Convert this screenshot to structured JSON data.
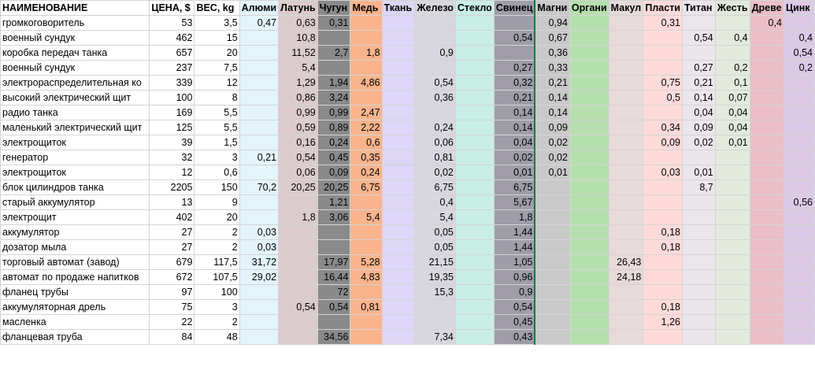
{
  "headers": [
    "НАИМЕНОВАНИЕ",
    "ЦЕНА, $",
    "ВЕС, kg",
    "Алюми",
    "Латунь",
    "Чугун",
    "Медь",
    "Ткань",
    "Железо",
    "Стекло",
    "Свинец",
    "Магни",
    "Органи",
    "Макул",
    "Пласти",
    "Титан",
    "Жесть",
    "Древе",
    "Цинк"
  ],
  "column_colors": [
    "#ffffff",
    "#ffffff",
    "#ffffff",
    "#e3f4fb",
    "#dccbcc",
    "#8a8a8a",
    "#f9b48d",
    "#ddd6f6",
    "#d8d6de",
    "#c8eee6",
    "#a09da9",
    "#c9c9c9",
    "#b6dfae",
    "#e7dada",
    "#fddada",
    "#ebe5ec",
    "#e3eadd",
    "#ebbec8",
    "#dcc9e8"
  ],
  "rows": [
    [
      "громкоговоритель",
      "53",
      "3,5",
      "0,47",
      "0,63",
      "0,31",
      "",
      "",
      "",
      "",
      "",
      "0,94",
      "",
      "",
      "0,31",
      "",
      "",
      "0,4",
      ""
    ],
    [
      "военный сундук",
      "462",
      "15",
      "",
      "10,8",
      "",
      "",
      "",
      "",
      "",
      "0,54",
      "0,67",
      "",
      "",
      "",
      "0,54",
      "0,4",
      "",
      "0,4"
    ],
    [
      "коробка передач танка",
      "657",
      "20",
      "",
      "11,52",
      "2,7",
      "1,8",
      "",
      "0,9",
      "",
      "",
      "0,36",
      "",
      "",
      "",
      "",
      "",
      "",
      "0,54"
    ],
    [
      "военный сундук",
      "237",
      "7,5",
      "",
      "5,4",
      "",
      "",
      "",
      "",
      "",
      "0,27",
      "0,33",
      "",
      "",
      "",
      "0,27",
      "0,2",
      "",
      "0,2"
    ],
    [
      "электрораспределительная ко",
      "339",
      "12",
      "",
      "1,29",
      "1,94",
      "4,86",
      "",
      "0,54",
      "",
      "0,32",
      "0,21",
      "",
      "",
      "0,75",
      "0,21",
      "0,1",
      "",
      ""
    ],
    [
      "высокий электрический щит",
      "100",
      "8",
      "",
      "0,86",
      "3,24",
      "",
      "",
      "0,36",
      "",
      "0,21",
      "0,14",
      "",
      "",
      "0,5",
      "0,14",
      "0,07",
      "",
      ""
    ],
    [
      "радио танка",
      "169",
      "5,5",
      "",
      "0,99",
      "0,99",
      "2,47",
      "",
      "",
      "",
      "0,14",
      "0,14",
      "",
      "",
      "",
      "0,04",
      "0,04",
      "",
      ""
    ],
    [
      "маленький электрический щит",
      "125",
      "5,5",
      "",
      "0,59",
      "0,89",
      "2,22",
      "",
      "0,24",
      "",
      "0,14",
      "0,09",
      "",
      "",
      "0,34",
      "0,09",
      "0,04",
      "",
      ""
    ],
    [
      "электрощиток",
      "39",
      "1,5",
      "",
      "0,16",
      "0,24",
      "0,6",
      "",
      "0,06",
      "",
      "0,04",
      "0,02",
      "",
      "",
      "0,09",
      "0,02",
      "0,01",
      "",
      ""
    ],
    [
      "генератор",
      "32",
      "3",
      "0,21",
      "0,54",
      "0,45",
      "0,35",
      "",
      "0,81",
      "",
      "0,02",
      "0,02",
      "",
      "",
      "",
      "",
      "",
      "",
      ""
    ],
    [
      "электрощиток",
      "12",
      "0,6",
      "",
      "0,06",
      "0,09",
      "0,24",
      "",
      "0,02",
      "",
      "0,01",
      "0,01",
      "",
      "",
      "0,03",
      "0,01",
      "",
      "",
      ""
    ],
    [
      "блок цилиндров танка",
      "2205",
      "150",
      "70,2",
      "20,25",
      "20,25",
      "6,75",
      "",
      "6,75",
      "",
      "6,75",
      "",
      "",
      "",
      "",
      "8,7",
      "",
      "",
      ""
    ],
    [
      "старый аккумулятор",
      "13",
      "9",
      "",
      "",
      "1,21",
      "",
      "",
      "0,4",
      "",
      "5,67",
      "",
      "",
      "",
      "",
      "",
      "",
      "",
      "0,56"
    ],
    [
      "электрощит",
      "402",
      "20",
      "",
      "1,8",
      "3,06",
      "5,4",
      "",
      "5,4",
      "",
      "1,8",
      "",
      "",
      "",
      "",
      "",
      "",
      "",
      ""
    ],
    [
      "аккумулятор",
      "27",
      "2",
      "0,03",
      "",
      "",
      "",
      "",
      "0,05",
      "",
      "1,44",
      "",
      "",
      "",
      "0,18",
      "",
      "",
      "",
      ""
    ],
    [
      "дозатор мыла",
      "27",
      "2",
      "0,03",
      "",
      "",
      "",
      "",
      "0,05",
      "",
      "1,44",
      "",
      "",
      "",
      "0,18",
      "",
      "",
      "",
      ""
    ],
    [
      "торговый автомат (завод)",
      "679",
      "117,5",
      "31,72",
      "",
      "17,97",
      "5,28",
      "",
      "21,15",
      "",
      "1,05",
      "",
      "",
      "26,43",
      "",
      "",
      "",
      "",
      ""
    ],
    [
      "автомат по продаже напитков",
      "672",
      "107,5",
      "29,02",
      "",
      "16,44",
      "4,83",
      "",
      "19,35",
      "",
      "0,96",
      "",
      "",
      "24,18",
      "",
      "",
      "",
      "",
      ""
    ],
    [
      "фланец трубы",
      "97",
      "100",
      "",
      "",
      "72",
      "",
      "",
      "15,3",
      "",
      "0,9",
      "",
      "",
      "",
      "",
      "",
      "",
      "",
      ""
    ],
    [
      "аккумуляторная дрель",
      "75",
      "3",
      "",
      "0,54",
      "0,54",
      "0,81",
      "",
      "",
      "",
      "0,54",
      "",
      "",
      "",
      "0,18",
      "",
      "",
      "",
      ""
    ],
    [
      "масленка",
      "22",
      "2",
      "",
      "",
      "",
      "",
      "",
      "",
      "",
      "0,45",
      "",
      "",
      "",
      "1,26",
      "",
      "",
      "",
      ""
    ],
    [
      "фланцевая труба",
      "84",
      "48",
      "",
      "",
      "34,56",
      "",
      "",
      "7,34",
      "",
      "0,43",
      "",
      "",
      "",
      "",
      "",
      "",
      "",
      ""
    ]
  ]
}
